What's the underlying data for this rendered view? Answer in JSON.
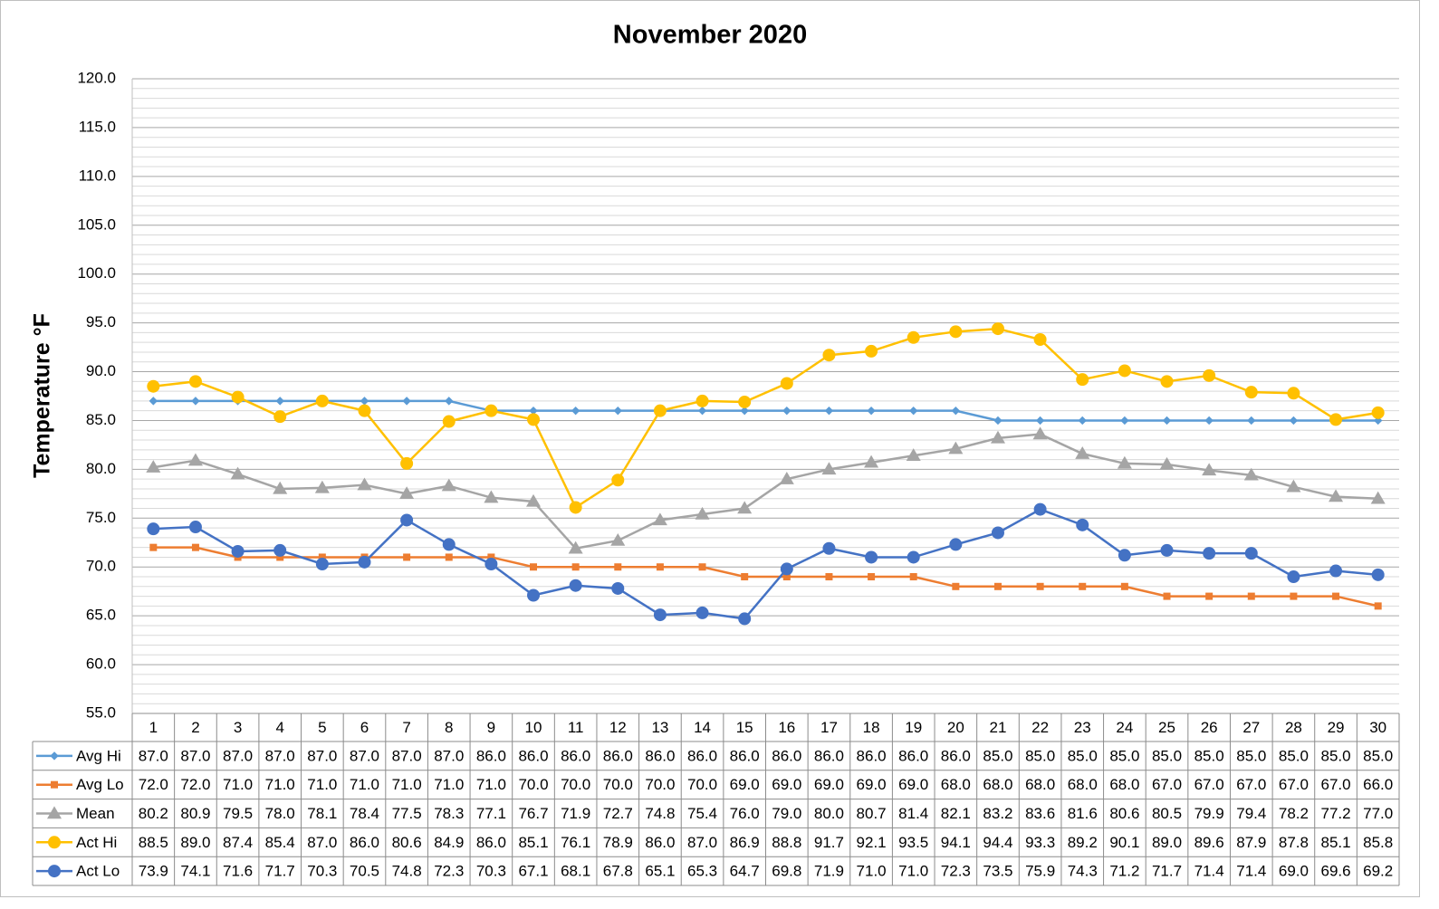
{
  "chart_data": {
    "type": "line",
    "title": "November 2020",
    "y_label": "Temperature °F",
    "categories": [
      "1",
      "2",
      "3",
      "4",
      "5",
      "6",
      "7",
      "8",
      "9",
      "10",
      "11",
      "12",
      "13",
      "14",
      "15",
      "16",
      "17",
      "18",
      "19",
      "20",
      "21",
      "22",
      "23",
      "24",
      "25",
      "26",
      "27",
      "28",
      "29",
      "30"
    ],
    "ylim": [
      55,
      120
    ],
    "yticks": [
      {
        "value": 55,
        "label": "55.0"
      },
      {
        "value": 60,
        "label": "60.0"
      },
      {
        "value": 65,
        "label": "65.0"
      },
      {
        "value": 70,
        "label": "70.0"
      },
      {
        "value": 75,
        "label": "75.0"
      },
      {
        "value": 80,
        "label": "80.0"
      },
      {
        "value": 85,
        "label": "85.0"
      },
      {
        "value": 90,
        "label": "90.0"
      },
      {
        "value": 95,
        "label": "95.0"
      },
      {
        "value": 100,
        "label": "100.0"
      },
      {
        "value": 105,
        "label": "105.0"
      },
      {
        "value": 110,
        "label": "110.0"
      },
      {
        "value": 115,
        "label": "115.0"
      },
      {
        "value": 120,
        "label": "120.0"
      }
    ],
    "grid": true,
    "minor_grid": true,
    "data_table": true,
    "series": [
      {
        "name": "Avg Hi",
        "color": "#5b9bd5",
        "marker": "diamond",
        "values": [
          87,
          87,
          87,
          87,
          87,
          87,
          87,
          87,
          86,
          86,
          86,
          86,
          86,
          86,
          86,
          86,
          86,
          86,
          86,
          86,
          85,
          85,
          85,
          85,
          85,
          85,
          85,
          85,
          85,
          85
        ],
        "value_labels": [
          "87.0",
          "87.0",
          "87.0",
          "87.0",
          "87.0",
          "87.0",
          "87.0",
          "87.0",
          "86.0",
          "86.0",
          "86.0",
          "86.0",
          "86.0",
          "86.0",
          "86.0",
          "86.0",
          "86.0",
          "86.0",
          "86.0",
          "86.0",
          "85.0",
          "85.0",
          "85.0",
          "85.0",
          "85.0",
          "85.0",
          "85.0",
          "85.0",
          "85.0",
          "85.0"
        ]
      },
      {
        "name": "Avg Lo",
        "color": "#ed7d31",
        "marker": "square",
        "values": [
          72,
          72,
          71,
          71,
          71,
          71,
          71,
          71,
          71,
          70,
          70,
          70,
          70,
          70,
          69,
          69,
          69,
          69,
          69,
          68,
          68,
          68,
          68,
          68,
          67,
          67,
          67,
          67,
          67,
          66
        ],
        "value_labels": [
          "72.0",
          "72.0",
          "71.0",
          "71.0",
          "71.0",
          "71.0",
          "71.0",
          "71.0",
          "71.0",
          "70.0",
          "70.0",
          "70.0",
          "70.0",
          "70.0",
          "69.0",
          "69.0",
          "69.0",
          "69.0",
          "69.0",
          "68.0",
          "68.0",
          "68.0",
          "68.0",
          "68.0",
          "67.0",
          "67.0",
          "67.0",
          "67.0",
          "67.0",
          "66.0"
        ]
      },
      {
        "name": "Mean",
        "color": "#a5a5a5",
        "marker": "triangle",
        "values": [
          80.2,
          80.9,
          79.5,
          78,
          78.1,
          78.4,
          77.5,
          78.3,
          77.1,
          76.7,
          71.9,
          72.7,
          74.8,
          75.4,
          76,
          79,
          80,
          80.7,
          81.4,
          82.1,
          83.2,
          83.6,
          81.6,
          80.6,
          80.5,
          79.9,
          79.4,
          78.2,
          77.2,
          77
        ],
        "value_labels": [
          "80.2",
          "80.9",
          "79.5",
          "78.0",
          "78.1",
          "78.4",
          "77.5",
          "78.3",
          "77.1",
          "76.7",
          "71.9",
          "72.7",
          "74.8",
          "75.4",
          "76.0",
          "79.0",
          "80.0",
          "80.7",
          "81.4",
          "82.1",
          "83.2",
          "83.6",
          "81.6",
          "80.6",
          "80.5",
          "79.9",
          "79.4",
          "78.2",
          "77.2",
          "77.0"
        ]
      },
      {
        "name": "Act Hi",
        "color": "#ffc000",
        "marker": "circle",
        "values": [
          88.5,
          89,
          87.4,
          85.4,
          87,
          86,
          80.6,
          84.9,
          86,
          85.1,
          76.1,
          78.9,
          86,
          87,
          86.9,
          88.8,
          91.7,
          92.1,
          93.5,
          94.1,
          94.4,
          93.3,
          89.2,
          90.1,
          89,
          89.6,
          87.9,
          87.8,
          85.1,
          85.8
        ],
        "value_labels": [
          "88.5",
          "89.0",
          "87.4",
          "85.4",
          "87.0",
          "86.0",
          "80.6",
          "84.9",
          "86.0",
          "85.1",
          "76.1",
          "78.9",
          "86.0",
          "87.0",
          "86.9",
          "88.8",
          "91.7",
          "92.1",
          "93.5",
          "94.1",
          "94.4",
          "93.3",
          "89.2",
          "90.1",
          "89.0",
          "89.6",
          "87.9",
          "87.8",
          "85.1",
          "85.8"
        ]
      },
      {
        "name": "Act Lo",
        "color": "#4472c4",
        "marker": "circle",
        "values": [
          73.9,
          74.1,
          71.6,
          71.7,
          70.3,
          70.5,
          74.8,
          72.3,
          70.3,
          67.1,
          68.1,
          67.8,
          65.1,
          65.3,
          64.7,
          69.8,
          71.9,
          71,
          71,
          72.3,
          73.5,
          75.9,
          74.3,
          71.2,
          71.7,
          71.4,
          71.4,
          69,
          69.6,
          69.2
        ],
        "value_labels": [
          "73.9",
          "74.1",
          "71.6",
          "71.7",
          "70.3",
          "70.5",
          "74.8",
          "72.3",
          "70.3",
          "67.1",
          "68.1",
          "67.8",
          "65.1",
          "65.3",
          "64.7",
          "69.8",
          "71.9",
          "71.0",
          "71.0",
          "72.3",
          "73.5",
          "75.9",
          "74.3",
          "71.2",
          "71.7",
          "71.4",
          "71.4",
          "69.0",
          "69.6",
          "69.2"
        ]
      }
    ]
  }
}
